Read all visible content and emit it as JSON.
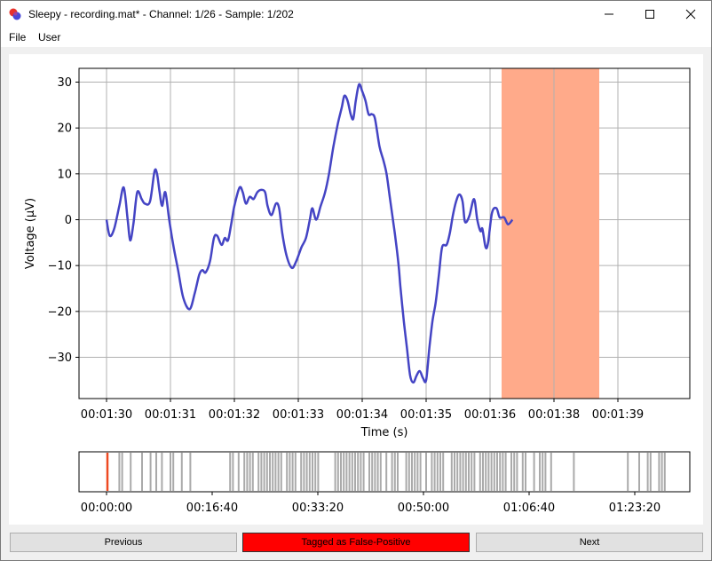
{
  "window": {
    "title": "Sleepy - recording.mat* - Channel: 1/26 - Sample: 1/202"
  },
  "menu": [
    "File",
    "User"
  ],
  "main_plot": {
    "ylabel": "Voltage (μV)",
    "xlabel": "Time (s)",
    "yticks": [
      "30",
      "20",
      "10",
      "0",
      "−10",
      "−20",
      "−30"
    ],
    "xticks": [
      "00:01:30",
      "00:01:31",
      "00:01:32",
      "00:01:33",
      "00:01:34",
      "00:01:35",
      "00:01:36",
      "00:01:38",
      "00:01:39"
    ]
  },
  "overview_plot": {
    "xticks": [
      "00:00:00",
      "00:16:40",
      "00:33:20",
      "00:50:00",
      "01:06:40",
      "01:23:20"
    ]
  },
  "buttons": {
    "previous": "Previous",
    "tag": "Tagged as False-Positive",
    "next": "Next"
  },
  "colors": {
    "signal": "#4444c4",
    "highlight": "#ffaa8a",
    "tag_button": "#ff0000",
    "marker_current": "#ee4a22",
    "marker": "#aaaaaa"
  },
  "chart_data": {
    "type": "line",
    "xlabel": "Time (s)",
    "ylabel": "Voltage (μV)",
    "ylim": [
      -39,
      33
    ],
    "highlight_span": [
      "00:01:36.1",
      "00:01:37.6"
    ],
    "grid": true,
    "series": [
      {
        "values": [
          [
            0,
            0
          ],
          [
            0.05,
            -3.5
          ],
          [
            0.12,
            -2
          ],
          [
            0.2,
            3
          ],
          [
            0.27,
            7
          ],
          [
            0.33,
            0
          ],
          [
            0.37,
            -4.5
          ],
          [
            0.42,
            -1
          ],
          [
            0.48,
            6
          ],
          [
            0.55,
            4.5
          ],
          [
            0.6,
            3.5
          ],
          [
            0.68,
            4
          ],
          [
            0.75,
            10.5
          ],
          [
            0.79,
            10
          ],
          [
            0.83,
            6
          ],
          [
            0.87,
            3
          ],
          [
            0.92,
            6
          ],
          [
            0.98,
            0
          ],
          [
            1.05,
            -6
          ],
          [
            1.12,
            -11
          ],
          [
            1.2,
            -17
          ],
          [
            1.3,
            -19.5
          ],
          [
            1.38,
            -16
          ],
          [
            1.45,
            -12
          ],
          [
            1.5,
            -11
          ],
          [
            1.55,
            -11.5
          ],
          [
            1.62,
            -9
          ],
          [
            1.68,
            -4
          ],
          [
            1.73,
            -3.5
          ],
          [
            1.8,
            -5.5
          ],
          [
            1.85,
            -4
          ],
          [
            1.9,
            -4.5
          ],
          [
            1.95,
            -1
          ],
          [
            2.0,
            3
          ],
          [
            2.08,
            7
          ],
          [
            2.13,
            6
          ],
          [
            2.18,
            3.5
          ],
          [
            2.24,
            5
          ],
          [
            2.3,
            4.5
          ],
          [
            2.36,
            6
          ],
          [
            2.42,
            6.5
          ],
          [
            2.48,
            6
          ],
          [
            2.52,
            3
          ],
          [
            2.58,
            1
          ],
          [
            2.65,
            3.5
          ],
          [
            2.7,
            2.5
          ],
          [
            2.75,
            -3
          ],
          [
            2.82,
            -8
          ],
          [
            2.9,
            -10.5
          ],
          [
            2.97,
            -9
          ],
          [
            3.05,
            -6
          ],
          [
            3.12,
            -4
          ],
          [
            3.18,
            0
          ],
          [
            3.22,
            2.5
          ],
          [
            3.28,
            0
          ],
          [
            3.35,
            3
          ],
          [
            3.42,
            6
          ],
          [
            3.48,
            10
          ],
          [
            3.55,
            16
          ],
          [
            3.62,
            21
          ],
          [
            3.68,
            24.5
          ],
          [
            3.72,
            27
          ],
          [
            3.77,
            26
          ],
          [
            3.82,
            23
          ],
          [
            3.86,
            22
          ],
          [
            3.9,
            26
          ],
          [
            3.95,
            29.5
          ],
          [
            4.0,
            28
          ],
          [
            4.05,
            26
          ],
          [
            4.1,
            23
          ],
          [
            4.15,
            23
          ],
          [
            4.2,
            22
          ],
          [
            4.27,
            16
          ],
          [
            4.33,
            13
          ],
          [
            4.38,
            10
          ],
          [
            4.43,
            5
          ],
          [
            4.48,
            0
          ],
          [
            4.52,
            -4
          ],
          [
            4.57,
            -10
          ],
          [
            4.6,
            -15
          ],
          [
            4.65,
            -22
          ],
          [
            4.7,
            -28
          ],
          [
            4.75,
            -34
          ],
          [
            4.8,
            -35.5
          ],
          [
            4.85,
            -34
          ],
          [
            4.9,
            -33
          ],
          [
            4.95,
            -34.5
          ],
          [
            5.0,
            -35
          ],
          [
            5.05,
            -28
          ],
          [
            5.1,
            -22
          ],
          [
            5.15,
            -18
          ],
          [
            5.2,
            -12
          ],
          [
            5.25,
            -6
          ],
          [
            5.32,
            -5.5
          ],
          [
            5.37,
            -3
          ],
          [
            5.42,
            1
          ],
          [
            5.47,
            4
          ],
          [
            5.52,
            5.5
          ],
          [
            5.57,
            4
          ],
          [
            5.6,
            0
          ],
          [
            5.63,
            -0.5
          ],
          [
            5.68,
            1
          ],
          [
            5.75,
            4.5
          ],
          [
            5.8,
            0
          ],
          [
            5.85,
            -2.5
          ],
          [
            5.88,
            -2
          ],
          [
            5.93,
            -6
          ],
          [
            5.97,
            -5
          ],
          [
            6.03,
            1.5
          ],
          [
            6.1,
            2.5
          ],
          [
            6.15,
            0.5
          ],
          [
            6.22,
            0.5
          ],
          [
            6.28,
            -1
          ],
          [
            6.35,
            0
          ]
        ]
      }
    ]
  }
}
